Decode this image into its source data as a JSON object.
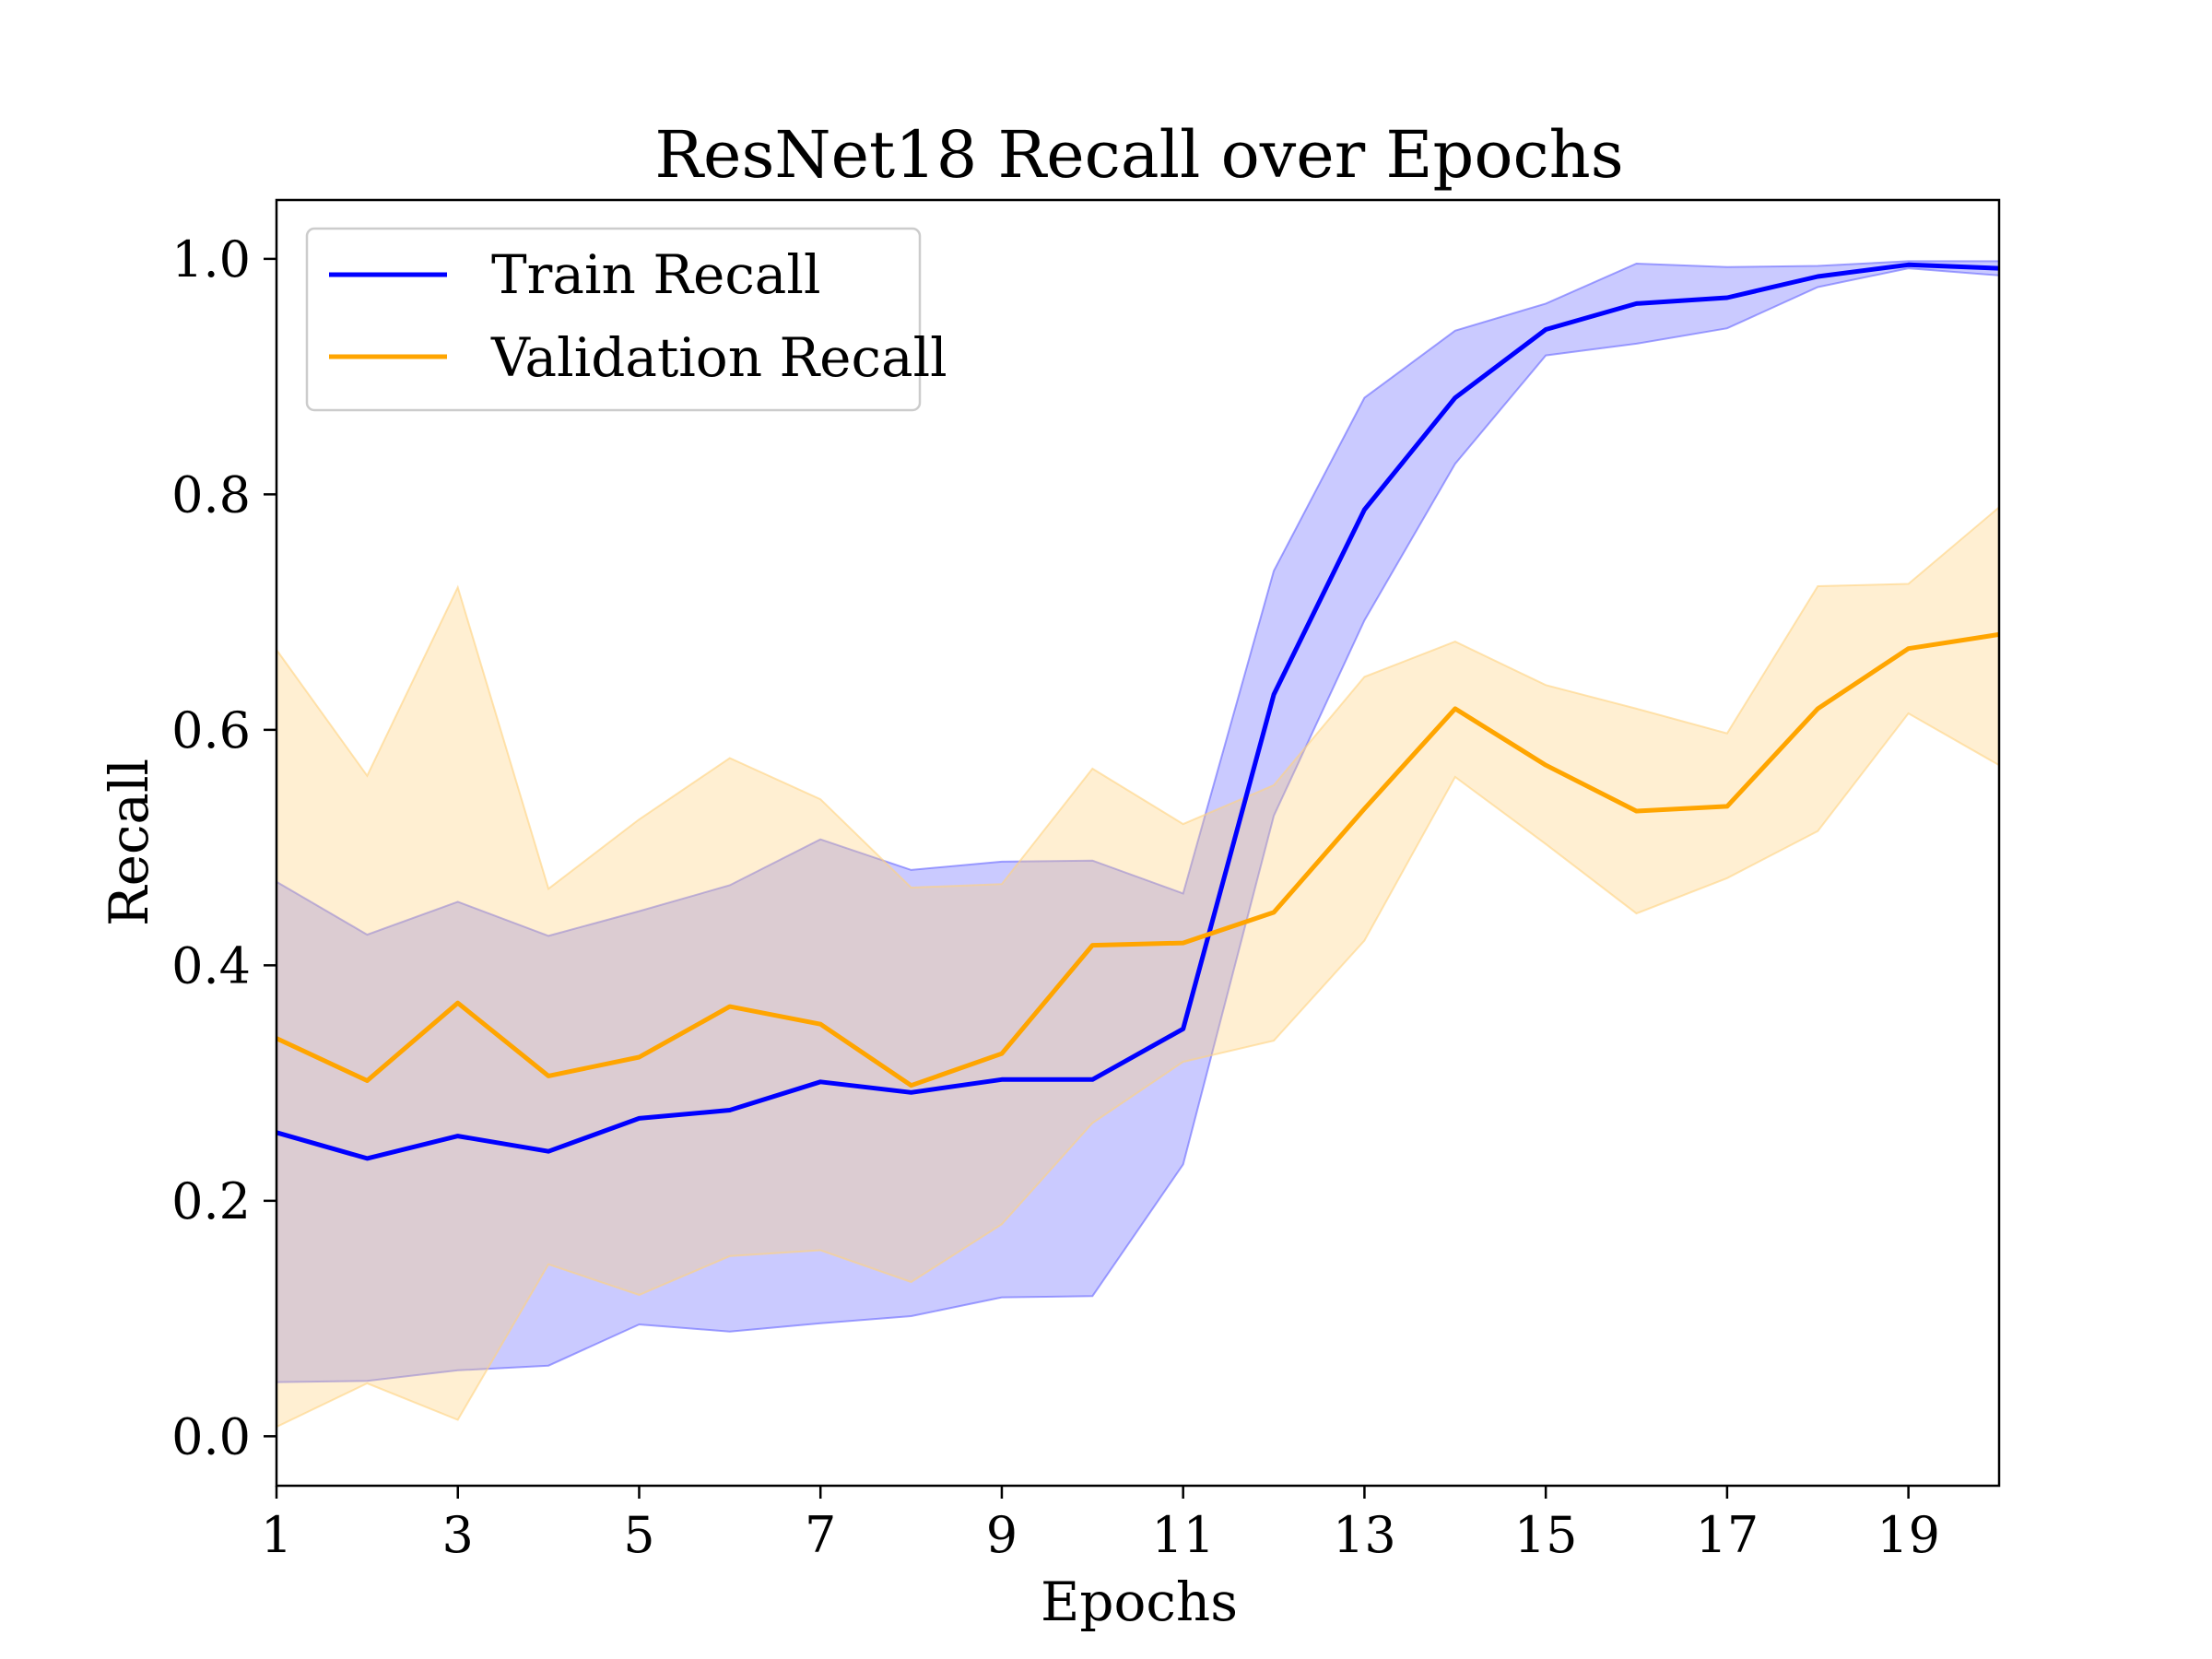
{
  "chart_data": {
    "type": "line",
    "title": "ResNet18 Recall over Epochs",
    "xlabel": "Epochs",
    "ylabel": "Recall",
    "xlim": [
      1,
      20
    ],
    "ylim": [
      -0.042,
      1.05
    ],
    "xticks": [
      1,
      3,
      5,
      7,
      9,
      11,
      13,
      15,
      17,
      19
    ],
    "yticks": [
      0.0,
      0.2,
      0.4,
      0.6,
      0.8,
      1.0
    ],
    "ytick_labels": [
      "0.0",
      "0.2",
      "0.4",
      "0.6",
      "0.8",
      "1.0"
    ],
    "grid": false,
    "legend_position": "upper-left",
    "x": [
      1,
      2,
      3,
      4,
      5,
      6,
      7,
      8,
      9,
      10,
      11,
      12,
      13,
      14,
      15,
      16,
      17,
      18,
      19,
      20
    ],
    "series": [
      {
        "name": "Train Recall",
        "color": "#0000ff",
        "band_color": "#6666ff",
        "values": [
          0.258,
          0.236,
          0.255,
          0.242,
          0.27,
          0.277,
          0.301,
          0.292,
          0.303,
          0.303,
          0.346,
          0.63,
          0.787,
          0.882,
          0.94,
          0.962,
          0.967,
          0.985,
          0.995,
          0.992
        ],
        "lower": [
          0.046,
          0.047,
          0.056,
          0.06,
          0.095,
          0.089,
          0.096,
          0.102,
          0.118,
          0.119,
          0.231,
          0.527,
          0.693,
          0.826,
          0.918,
          0.928,
          0.941,
          0.976,
          0.992,
          0.986
        ],
        "upper": [
          0.471,
          0.426,
          0.454,
          0.425,
          0.446,
          0.468,
          0.507,
          0.481,
          0.488,
          0.489,
          0.461,
          0.735,
          0.882,
          0.939,
          0.962,
          0.996,
          0.993,
          0.994,
          0.998,
          0.998
        ]
      },
      {
        "name": "Validation Recall",
        "color": "#ffa500",
        "band_color": "#ffd27f",
        "values": [
          0.338,
          0.302,
          0.368,
          0.306,
          0.322,
          0.365,
          0.35,
          0.298,
          0.325,
          0.417,
          0.419,
          0.445,
          0.533,
          0.618,
          0.57,
          0.531,
          0.535,
          0.618,
          0.669,
          0.681
        ],
        "lower": [
          0.008,
          0.045,
          0.014,
          0.146,
          0.12,
          0.153,
          0.158,
          0.131,
          0.18,
          0.266,
          0.318,
          0.336,
          0.421,
          0.56,
          0.503,
          0.444,
          0.474,
          0.514,
          0.614,
          0.57
        ],
        "upper": [
          0.668,
          0.561,
          0.721,
          0.465,
          0.524,
          0.576,
          0.541,
          0.466,
          0.469,
          0.567,
          0.52,
          0.553,
          0.645,
          0.675,
          0.638,
          0.618,
          0.597,
          0.722,
          0.724,
          0.789
        ]
      }
    ]
  }
}
